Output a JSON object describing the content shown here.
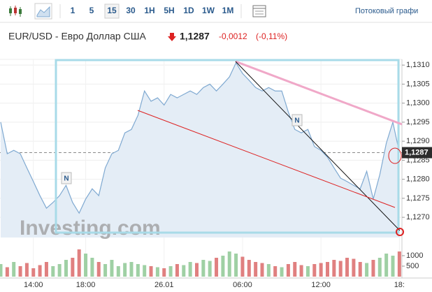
{
  "toolbar": {
    "intervals": [
      "1",
      "5",
      "15",
      "30",
      "1H",
      "5H",
      "1D",
      "1W",
      "1M"
    ],
    "stream": "Потоковый графи"
  },
  "header": {
    "name": "EUR/USD - Евро Доллар США",
    "price": "1,1287",
    "change": "-0,0012",
    "change_pct": "(-0,11%)"
  },
  "chart_data": [
    {
      "type": "area",
      "color": "#7fa9d1",
      "fill": "#e4edf6",
      "watermark": "Investing.com",
      "news": [
        "N",
        "N"
      ],
      "categories": [
        null,
        null,
        null,
        null,
        null,
        "14:00",
        null,
        null,
        null,
        null,
        null,
        null,
        null,
        "18:00",
        null,
        null,
        null,
        null,
        null,
        null,
        null,
        null,
        null,
        null,
        null,
        "26.01",
        null,
        null,
        null,
        null,
        null,
        null,
        null,
        null,
        null,
        null,
        null,
        "06:00",
        null,
        null,
        null,
        null,
        null,
        null,
        null,
        null,
        null,
        null,
        null,
        "12:00",
        null,
        null,
        null,
        null,
        null,
        null,
        null,
        null,
        null,
        null,
        null,
        "18:"
      ],
      "values": [
        1.1295,
        1.12867,
        1.12876,
        1.12867,
        1.1283,
        1.12794,
        1.12757,
        1.12724,
        1.12739,
        1.12757,
        1.12784,
        1.12739,
        1.12711,
        1.12748,
        1.12775,
        1.12757,
        1.1283,
        1.12867,
        1.12876,
        1.12922,
        1.12931,
        1.12968,
        1.13032,
        1.13005,
        1.13014,
        1.12995,
        1.13023,
        1.13014,
        1.13023,
        1.13032,
        1.13023,
        1.13041,
        1.1305,
        1.13032,
        1.1305,
        1.13069,
        1.13106,
        1.13078,
        1.1306,
        1.13041,
        1.13032,
        1.13041,
        1.13032,
        1.13032,
        1.12977,
        1.12931,
        1.12922,
        1.12931,
        1.12886,
        1.12876,
        1.12858,
        1.1283,
        1.12803,
        1.12794,
        1.12784,
        1.12775,
        1.12821,
        1.12748,
        1.12812,
        1.12895,
        1.1295,
        1.1287
      ],
      "ylim": [
        1.12647,
        1.13115
      ],
      "yticks": [
        {
          "value": 1.127,
          "label": "1,1270"
        },
        {
          "value": 1.1275,
          "label": "1,1275"
        },
        {
          "value": 1.128,
          "label": "1,1280"
        },
        {
          "value": 1.1285,
          "label": "1,1285"
        },
        {
          "value": 1.129,
          "label": "1,1290"
        },
        {
          "value": 1.1295,
          "label": "1,1295"
        },
        {
          "value": 1.13,
          "label": "1,1300"
        },
        {
          "value": 1.1305,
          "label": "1,1305"
        },
        {
          "value": 1.131,
          "label": "1,1310"
        }
      ],
      "last_price": {
        "value": 1.1287,
        "label": "1,1287"
      },
      "grid": true
    },
    {
      "type": "bar",
      "up_color": "#9fd0a4",
      "down_color": "#e08080",
      "values": [
        600,
        450,
        700,
        500,
        650,
        400,
        550,
        700,
        500,
        600,
        800,
        900,
        1300,
        1100,
        900,
        700,
        600,
        800,
        500,
        650,
        700,
        600,
        550,
        500,
        450,
        400,
        500,
        600,
        550,
        700,
        650,
        800,
        750,
        900,
        1000,
        1200,
        1100,
        950,
        800,
        700,
        650,
        600,
        500,
        450,
        600,
        700,
        550,
        500,
        600,
        650,
        700,
        800,
        750,
        900,
        850,
        700,
        650,
        800,
        900,
        1100,
        1000,
        1200
      ],
      "ylim": [
        0,
        1700
      ],
      "yticks": [
        500,
        1000
      ]
    }
  ]
}
